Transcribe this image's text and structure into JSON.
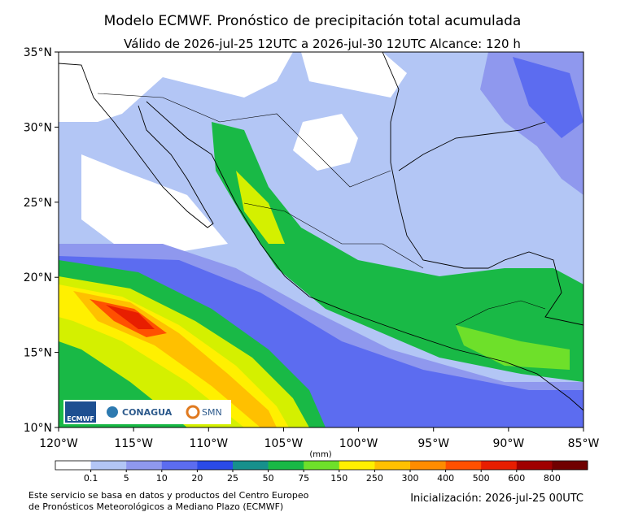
{
  "title": "Modelo ECMWF. Pronóstico de precipitación total acumulada",
  "subtitle": "Válido de 2026-jul-25 12UTC a 2026-jul-30 12UTC   Alcance: 120 h",
  "map": {
    "lat_labels": [
      "35°N",
      "30°N",
      "25°N",
      "20°N",
      "15°N",
      "10°N"
    ],
    "lon_labels": [
      "120°W",
      "115°W",
      "110°W",
      "105°W",
      "100°W",
      "95°W",
      "90°W",
      "85°W"
    ]
  },
  "colorbar": {
    "unit": "(mm)",
    "labels": [
      "0.1",
      "5",
      "10",
      "20",
      "25",
      "50",
      "75",
      "150",
      "250",
      "300",
      "400",
      "500",
      "600",
      "800"
    ],
    "colors": [
      "#ffffff",
      "#b3c6f5",
      "#8f98ee",
      "#5c6cf0",
      "#2a4ae8",
      "#17908c",
      "#19b946",
      "#6ee02a",
      "#fff000",
      "#ffc000",
      "#ff8c00",
      "#ff5000",
      "#e81e00",
      "#a00000",
      "#700000"
    ]
  },
  "logos": [
    "ECMWF",
    "CONAGUA",
    "SMN"
  ],
  "footer": {
    "source": [
      "Este servicio se basa en datos y productos del Centro Europeo",
      "de Pronósticos Meteorológicos a Mediano Plazo (ECMWF)"
    ],
    "init": "Inicialización: 2026-jul-25 00UTC"
  }
}
